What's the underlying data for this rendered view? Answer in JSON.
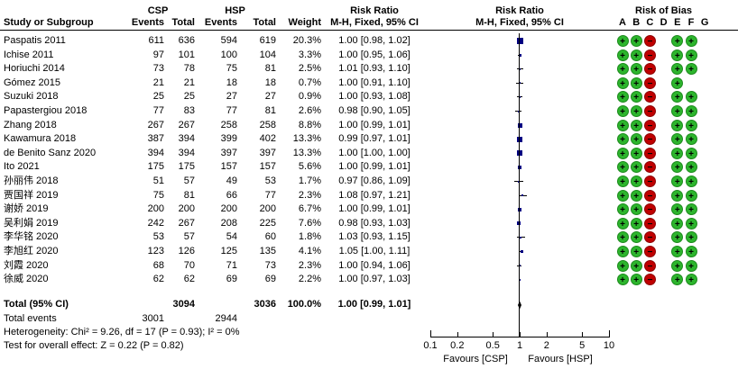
{
  "colors": {
    "rob_green": "#2db52d",
    "rob_green_border": "#1d8a1d",
    "rob_red": "#c00000",
    "rob_red_border": "#8c0000",
    "marker_navy": "#000080",
    "line_black": "#000000"
  },
  "headers": {
    "group_csp": "CSP",
    "group_hsp": "HSP",
    "risk_ratio_text_col": "Risk Ratio",
    "risk_ratio_plot_col": "Risk Ratio",
    "risk_of_bias": "Risk of Bias",
    "study": "Study or Subgroup",
    "events1": "Events",
    "total1": "Total",
    "events2": "Events",
    "total2": "Total",
    "weight": "Weight",
    "method_text_col": "M-H, Fixed, 95% CI",
    "method_plot_col": "M-H, Fixed, 95% CI",
    "rob_letters": [
      "A",
      "B",
      "C",
      "D",
      "E",
      "F",
      "G"
    ]
  },
  "chart_data": {
    "type": "forest",
    "effect_measure": "Risk Ratio",
    "method": "M-H, Fixed, 95% CI",
    "x_scale": "log",
    "x_ticks": [
      0.1,
      0.2,
      0.5,
      1,
      2,
      5,
      10
    ],
    "x_range": [
      0.1,
      10
    ],
    "favours_left": "Favours [CSP]",
    "favours_right": "Favours [HSP]",
    "studies": [
      {
        "name": "Paspatis 2011",
        "csp_events": 611,
        "csp_total": 636,
        "hsp_events": 594,
        "hsp_total": 619,
        "weight_pct": 20.3,
        "rr": 1.0,
        "ci_low": 0.98,
        "ci_high": 1.02,
        "rr_text": "1.00 [0.98, 1.02]",
        "risk_of_bias": [
          "+",
          "+",
          "-",
          "",
          "+",
          "+",
          ""
        ]
      },
      {
        "name": "Ichise 2011",
        "csp_events": 97,
        "csp_total": 101,
        "hsp_events": 100,
        "hsp_total": 104,
        "weight_pct": 3.3,
        "rr": 1.0,
        "ci_low": 0.95,
        "ci_high": 1.06,
        "rr_text": "1.00 [0.95, 1.06]",
        "risk_of_bias": [
          "+",
          "+",
          "-",
          "",
          "+",
          "+",
          ""
        ]
      },
      {
        "name": "Horiuchi 2014",
        "csp_events": 73,
        "csp_total": 78,
        "hsp_events": 75,
        "hsp_total": 81,
        "weight_pct": 2.5,
        "rr": 1.01,
        "ci_low": 0.93,
        "ci_high": 1.1,
        "rr_text": "1.01 [0.93, 1.10]",
        "risk_of_bias": [
          "+",
          "+",
          "-",
          "",
          "+",
          "+",
          ""
        ]
      },
      {
        "name": "Gómez 2015",
        "csp_events": 21,
        "csp_total": 21,
        "hsp_events": 18,
        "hsp_total": 18,
        "weight_pct": 0.7,
        "rr": 1.0,
        "ci_low": 0.91,
        "ci_high": 1.1,
        "rr_text": "1.00 [0.91, 1.10]",
        "risk_of_bias": [
          "+",
          "+",
          "-",
          "",
          "+",
          "",
          ""
        ]
      },
      {
        "name": "Suzuki 2018",
        "csp_events": 25,
        "csp_total": 25,
        "hsp_events": 27,
        "hsp_total": 27,
        "weight_pct": 0.9,
        "rr": 1.0,
        "ci_low": 0.93,
        "ci_high": 1.08,
        "rr_text": "1.00 [0.93, 1.08]",
        "risk_of_bias": [
          "+",
          "+",
          "-",
          "",
          "+",
          "+",
          ""
        ]
      },
      {
        "name": "Papastergiou 2018",
        "csp_events": 77,
        "csp_total": 83,
        "hsp_events": 77,
        "hsp_total": 81,
        "weight_pct": 2.6,
        "rr": 0.98,
        "ci_low": 0.9,
        "ci_high": 1.05,
        "rr_text": "0.98 [0.90, 1.05]",
        "risk_of_bias": [
          "+",
          "+",
          "-",
          "",
          "+",
          "+",
          ""
        ]
      },
      {
        "name": "Zhang 2018",
        "csp_events": 267,
        "csp_total": 267,
        "hsp_events": 258,
        "hsp_total": 258,
        "weight_pct": 8.8,
        "rr": 1.0,
        "ci_low": 0.99,
        "ci_high": 1.01,
        "rr_text": "1.00 [0.99, 1.01]",
        "risk_of_bias": [
          "+",
          "+",
          "-",
          "",
          "+",
          "+",
          ""
        ]
      },
      {
        "name": "Kawamura 2018",
        "csp_events": 387,
        "csp_total": 394,
        "hsp_events": 399,
        "hsp_total": 402,
        "weight_pct": 13.3,
        "rr": 0.99,
        "ci_low": 0.97,
        "ci_high": 1.01,
        "rr_text": "0.99 [0.97, 1.01]",
        "risk_of_bias": [
          "+",
          "+",
          "-",
          "",
          "+",
          "+",
          ""
        ]
      },
      {
        "name": "de Benito Sanz 2020",
        "csp_events": 394,
        "csp_total": 394,
        "hsp_events": 397,
        "hsp_total": 397,
        "weight_pct": 13.3,
        "rr": 1.0,
        "ci_low": 1.0,
        "ci_high": 1.0,
        "rr_text": "1.00 [1.00, 1.00]",
        "risk_of_bias": [
          "+",
          "+",
          "-",
          "",
          "+",
          "+",
          ""
        ]
      },
      {
        "name": "Ito 2021",
        "csp_events": 175,
        "csp_total": 175,
        "hsp_events": 157,
        "hsp_total": 157,
        "weight_pct": 5.6,
        "rr": 1.0,
        "ci_low": 0.99,
        "ci_high": 1.01,
        "rr_text": "1.00 [0.99, 1.01]",
        "risk_of_bias": [
          "+",
          "+",
          "-",
          "",
          "+",
          "+",
          ""
        ]
      },
      {
        "name": "孙丽伟 2018",
        "csp_events": 51,
        "csp_total": 57,
        "hsp_events": 49,
        "hsp_total": 53,
        "weight_pct": 1.7,
        "rr": 0.97,
        "ci_low": 0.86,
        "ci_high": 1.09,
        "rr_text": "0.97 [0.86, 1.09]",
        "risk_of_bias": [
          "+",
          "+",
          "-",
          "",
          "+",
          "+",
          ""
        ]
      },
      {
        "name": "贾国祥 2019",
        "csp_events": 75,
        "csp_total": 81,
        "hsp_events": 66,
        "hsp_total": 77,
        "weight_pct": 2.3,
        "rr": 1.08,
        "ci_low": 0.97,
        "ci_high": 1.21,
        "rr_text": "1.08 [0.97, 1.21]",
        "risk_of_bias": [
          "+",
          "+",
          "-",
          "",
          "+",
          "+",
          ""
        ]
      },
      {
        "name": "谢娇 2019",
        "csp_events": 200,
        "csp_total": 200,
        "hsp_events": 200,
        "hsp_total": 200,
        "weight_pct": 6.7,
        "rr": 1.0,
        "ci_low": 0.99,
        "ci_high": 1.01,
        "rr_text": "1.00 [0.99, 1.01]",
        "risk_of_bias": [
          "+",
          "+",
          "-",
          "",
          "+",
          "+",
          ""
        ]
      },
      {
        "name": "吴利娟 2019",
        "csp_events": 242,
        "csp_total": 267,
        "hsp_events": 208,
        "hsp_total": 225,
        "weight_pct": 7.6,
        "rr": 0.98,
        "ci_low": 0.93,
        "ci_high": 1.03,
        "rr_text": "0.98 [0.93, 1.03]",
        "risk_of_bias": [
          "+",
          "+",
          "-",
          "",
          "+",
          "+",
          ""
        ]
      },
      {
        "name": "李华铭 2020",
        "csp_events": 53,
        "csp_total": 57,
        "hsp_events": 54,
        "hsp_total": 60,
        "weight_pct": 1.8,
        "rr": 1.03,
        "ci_low": 0.93,
        "ci_high": 1.15,
        "rr_text": "1.03 [0.93, 1.15]",
        "risk_of_bias": [
          "+",
          "+",
          "-",
          "",
          "+",
          "+",
          ""
        ]
      },
      {
        "name": "李旭红 2020",
        "csp_events": 123,
        "csp_total": 126,
        "hsp_events": 125,
        "hsp_total": 135,
        "weight_pct": 4.1,
        "rr": 1.05,
        "ci_low": 1.0,
        "ci_high": 1.11,
        "rr_text": "1.05 [1.00, 1.11]",
        "risk_of_bias": [
          "+",
          "+",
          "-",
          "",
          "+",
          "+",
          ""
        ]
      },
      {
        "name": "刘霞 2020",
        "csp_events": 68,
        "csp_total": 70,
        "hsp_events": 71,
        "hsp_total": 73,
        "weight_pct": 2.3,
        "rr": 1.0,
        "ci_low": 0.94,
        "ci_high": 1.06,
        "rr_text": "1.00 [0.94, 1.06]",
        "risk_of_bias": [
          "+",
          "+",
          "-",
          "",
          "+",
          "+",
          ""
        ]
      },
      {
        "name": "徐威 2020",
        "csp_events": 62,
        "csp_total": 62,
        "hsp_events": 69,
        "hsp_total": 69,
        "weight_pct": 2.2,
        "rr": 1.0,
        "ci_low": 0.97,
        "ci_high": 1.03,
        "rr_text": "1.00 [0.97, 1.03]",
        "risk_of_bias": [
          "+",
          "+",
          "-",
          "",
          "+",
          "+",
          ""
        ]
      }
    ],
    "total": {
      "label": "Total (95% CI)",
      "csp_total": "3094",
      "hsp_total": "3036",
      "weight": "100.0%",
      "rr": 1.0,
      "ci_low": 0.99,
      "ci_high": 1.01,
      "rr_text": "1.00 [0.99, 1.01]"
    },
    "total_events": {
      "label": "Total events",
      "csp": "3001",
      "hsp": "2944"
    },
    "heterogeneity": "Heterogeneity: Chi² = 9.26, df = 17 (P = 0.93); I² = 0%",
    "overall_effect": "Test for overall effect: Z = 0.22 (P = 0.82)"
  }
}
